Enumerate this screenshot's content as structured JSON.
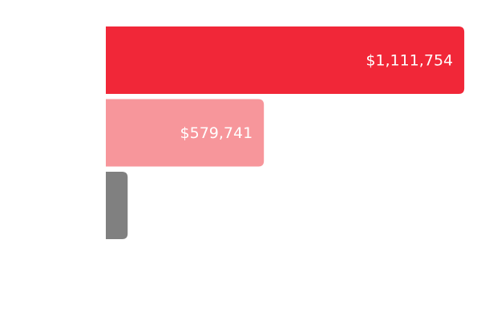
{
  "chart_data": {
    "type": "bar",
    "orientation": "horizontal",
    "categories": [
      null,
      null,
      null
    ],
    "values": [
      1111754,
      579741,
      218000
    ],
    "value_labels": [
      "$1,111,754",
      "$579,741",
      null
    ],
    "colors": [
      "#f12738",
      "#f7969b",
      "#808080"
    ],
    "xlim": [
      160000,
      1120000
    ]
  }
}
